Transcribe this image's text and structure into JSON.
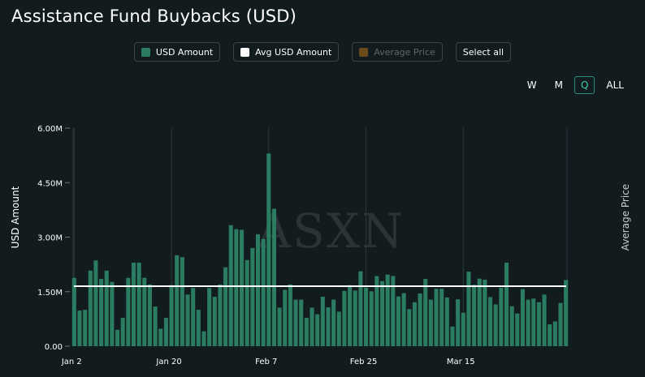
{
  "title": "Assistance Fund Buybacks (USD)",
  "legend": [
    {
      "label": "USD Amount",
      "color": "#2b7d62",
      "enabled": true
    },
    {
      "label": "Avg USD Amount",
      "color": "#ffffff",
      "enabled": true
    },
    {
      "label": "Average Price",
      "color": "#6b4a1c",
      "enabled": false
    }
  ],
  "select_all_label": "Select all",
  "ranges": [
    {
      "label": "W",
      "active": false
    },
    {
      "label": "M",
      "active": false
    },
    {
      "label": "Q",
      "active": true
    },
    {
      "label": "ALL",
      "active": false
    }
  ],
  "watermark": "ASXN",
  "chart_data": {
    "type": "bar",
    "title": "Assistance Fund Buybacks (USD)",
    "ylabel": "USD Amount",
    "y2label": "Average Price",
    "ylim": [
      0,
      6000000
    ],
    "yticks": [
      0,
      1500000,
      3000000,
      4500000,
      6000000
    ],
    "ytick_labels": [
      "0.00",
      "1.50M",
      "3.00M",
      "4.50M",
      "6.00M"
    ],
    "xtick_labels": [
      {
        "label": "Jan 2",
        "index": 0
      },
      {
        "label": "Jan 20",
        "index": 18
      },
      {
        "label": "Feb 7",
        "index": 36
      },
      {
        "label": "Feb 25",
        "index": 54
      },
      {
        "label": "Mar 15",
        "index": 72
      }
    ],
    "bar_color": "#2b7d62",
    "avg_line_color": "#ffffff",
    "avg_value": 1650000,
    "series": [
      {
        "name": "USD Amount",
        "values": [
          1880000,
          980000,
          1000000,
          2080000,
          2360000,
          1850000,
          2080000,
          1770000,
          450000,
          780000,
          1880000,
          2300000,
          2300000,
          1880000,
          1700000,
          1090000,
          480000,
          780000,
          1680000,
          2500000,
          2450000,
          1420000,
          1600000,
          1000000,
          410000,
          1600000,
          1360000,
          1700000,
          2170000,
          3330000,
          3220000,
          3200000,
          2370000,
          2700000,
          3080000,
          2950000,
          5300000,
          3780000,
          1060000,
          1550000,
          1700000,
          1280000,
          1280000,
          780000,
          1060000,
          880000,
          1360000,
          1070000,
          1280000,
          950000,
          1520000,
          1680000,
          1530000,
          2060000,
          1610000,
          1510000,
          1930000,
          1790000,
          1970000,
          1930000,
          1370000,
          1460000,
          1020000,
          1210000,
          1450000,
          1850000,
          1280000,
          1580000,
          1580000,
          1340000,
          540000,
          1290000,
          920000,
          2050000,
          1690000,
          1860000,
          1830000,
          1350000,
          1150000,
          1610000,
          2300000,
          1100000,
          900000,
          1570000,
          1280000,
          1310000,
          1210000,
          1420000,
          600000,
          680000,
          1190000,
          1820000
        ]
      },
      {
        "name": "Avg USD Amount",
        "values": [
          1650000
        ]
      }
    ]
  }
}
